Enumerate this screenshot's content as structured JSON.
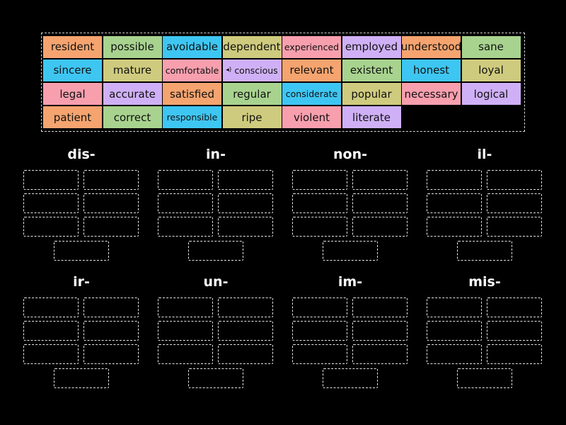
{
  "word_bank": {
    "tiles": [
      {
        "text": "resident",
        "color": "#f5a46f",
        "small": false
      },
      {
        "text": "possible",
        "color": "#a8d38f",
        "small": false
      },
      {
        "text": "avoidable",
        "color": "#3ec6f2",
        "small": false
      },
      {
        "text": "dependent",
        "color": "#cfcb7e",
        "small": false
      },
      {
        "text": "experienced",
        "color": "#f89fae",
        "small": true
      },
      {
        "text": "employed",
        "color": "#cfb0f6",
        "small": false
      },
      {
        "text": "understood",
        "color": "#f5a46f",
        "small": false
      },
      {
        "text": "sane",
        "color": "#a8d38f",
        "small": false
      },
      {
        "text": "sincere",
        "color": "#3ec6f2",
        "small": false
      },
      {
        "text": "mature",
        "color": "#cfcb7e",
        "small": false
      },
      {
        "text": "comfortable",
        "color": "#f89fae",
        "small": true
      },
      {
        "text": "conscious",
        "color": "#cfb0f6",
        "small": true,
        "audio_icon": "speaker-icon"
      },
      {
        "text": "relevant",
        "color": "#f5a46f",
        "small": false
      },
      {
        "text": "existent",
        "color": "#a8d38f",
        "small": false
      },
      {
        "text": "honest",
        "color": "#3ec6f2",
        "small": false
      },
      {
        "text": "loyal",
        "color": "#cfcb7e",
        "small": false
      },
      {
        "text": "legal",
        "color": "#f89fae",
        "small": false
      },
      {
        "text": "accurate",
        "color": "#cfb0f6",
        "small": false
      },
      {
        "text": "satisfied",
        "color": "#f5a46f",
        "small": false
      },
      {
        "text": "regular",
        "color": "#a8d38f",
        "small": false
      },
      {
        "text": "considerate",
        "color": "#3ec6f2",
        "small": true
      },
      {
        "text": "popular",
        "color": "#cfcb7e",
        "small": false
      },
      {
        "text": "necessary",
        "color": "#f89fae",
        "small": false
      },
      {
        "text": "logical",
        "color": "#cfb0f6",
        "small": false
      },
      {
        "text": "patient",
        "color": "#f5a46f",
        "small": false
      },
      {
        "text": "correct",
        "color": "#a8d38f",
        "small": false
      },
      {
        "text": "responsible",
        "color": "#3ec6f2",
        "small": true
      },
      {
        "text": "ripe",
        "color": "#cfcb7e",
        "small": false
      },
      {
        "text": "violent",
        "color": "#f89fae",
        "small": false
      },
      {
        "text": "literate",
        "color": "#cfb0f6",
        "small": false
      }
    ]
  },
  "groups": [
    {
      "title": "dis-"
    },
    {
      "title": "in-"
    },
    {
      "title": "non-"
    },
    {
      "title": "il-"
    },
    {
      "title": "ir-"
    },
    {
      "title": "un-"
    },
    {
      "title": "im-"
    },
    {
      "title": "mis-"
    }
  ],
  "slots_per_group": 7
}
